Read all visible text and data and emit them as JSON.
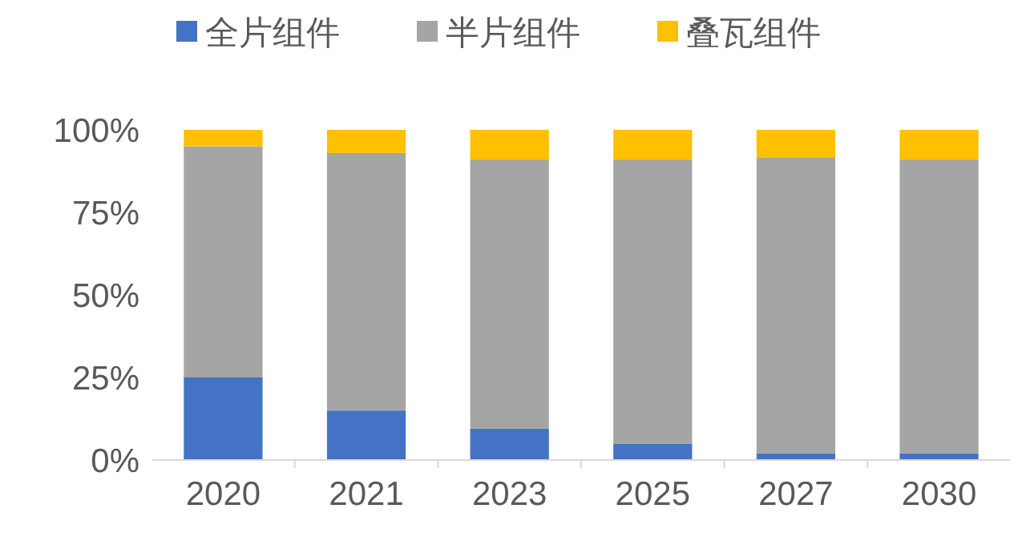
{
  "chart_data": {
    "type": "bar",
    "stacked": true,
    "categories": [
      "2020",
      "2021",
      "2023",
      "2025",
      "2027",
      "2030"
    ],
    "series": [
      {
        "name": "全片组件",
        "color": "#4472c4",
        "values": [
          25,
          15,
          9.5,
          5,
          2,
          2
        ]
      },
      {
        "name": "半片组件",
        "color": "#a5a5a5",
        "values": [
          70,
          78,
          81.5,
          86,
          89.5,
          89
        ]
      },
      {
        "name": "叠瓦组件",
        "color": "#ffc000",
        "values": [
          5,
          7,
          9,
          9,
          8.5,
          9
        ]
      }
    ],
    "ylim": [
      0,
      100
    ],
    "yticks": [
      {
        "value": 0,
        "label": "0%"
      },
      {
        "value": 25,
        "label": "25%"
      },
      {
        "value": 50,
        "label": "50%"
      },
      {
        "value": 75,
        "label": "75%"
      },
      {
        "value": 100,
        "label": "100%"
      }
    ],
    "grid": false,
    "legend": "top"
  }
}
